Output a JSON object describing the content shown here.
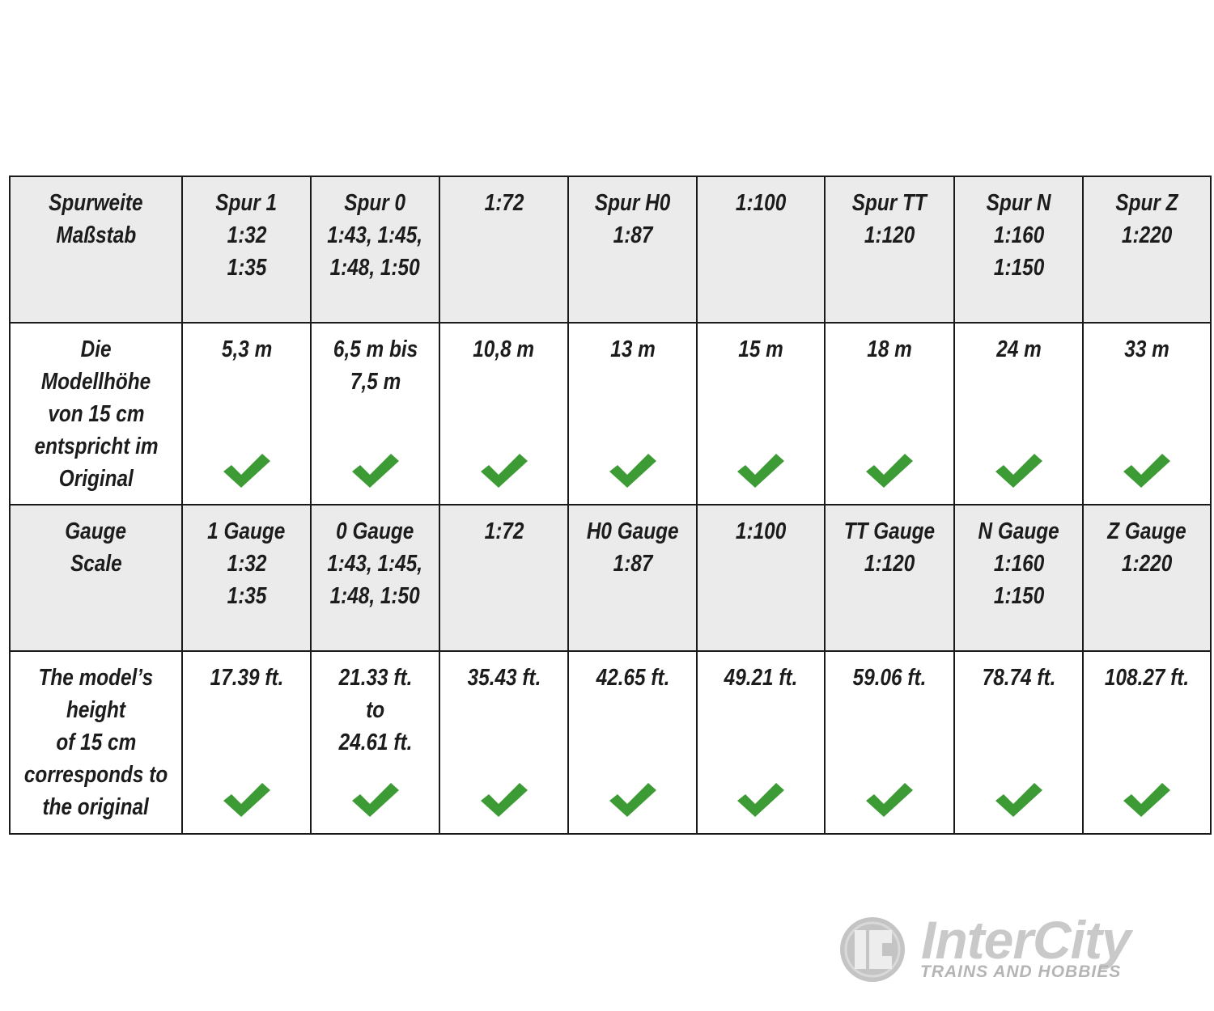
{
  "table": {
    "rows": [
      {
        "shade": true,
        "cells": [
          {
            "lines": [
              "Spurweite",
              "Maßstab"
            ]
          },
          {
            "lines": [
              "Spur 1",
              "1:32",
              "1:35"
            ]
          },
          {
            "lines": [
              "Spur 0",
              "1:43, 1:45,",
              "1:48, 1:50"
            ]
          },
          {
            "lines": [
              "1:72"
            ]
          },
          {
            "lines": [
              "Spur H0",
              "1:87"
            ]
          },
          {
            "lines": [
              "1:100"
            ]
          },
          {
            "lines": [
              "Spur TT",
              "1:120"
            ]
          },
          {
            "lines": [
              "Spur N",
              "1:160",
              "1:150"
            ]
          },
          {
            "lines": [
              "Spur Z",
              "1:220"
            ]
          }
        ]
      },
      {
        "shade": false,
        "cells": [
          {
            "lines": [
              "Die",
              "Modellhöhe",
              "von 15 cm",
              "entspricht im",
              "Original"
            ]
          },
          {
            "lines": [
              "5,3 m"
            ],
            "check": true
          },
          {
            "lines": [
              "6,5 m bis",
              "7,5 m"
            ],
            "check": true
          },
          {
            "lines": [
              "10,8 m"
            ],
            "check": true
          },
          {
            "lines": [
              "13 m"
            ],
            "check": true
          },
          {
            "lines": [
              "15 m"
            ],
            "check": true
          },
          {
            "lines": [
              "18 m"
            ],
            "check": true
          },
          {
            "lines": [
              "24 m"
            ],
            "check": true
          },
          {
            "lines": [
              "33 m"
            ],
            "check": true
          }
        ]
      },
      {
        "shade": true,
        "cells": [
          {
            "lines": [
              "Gauge",
              "Scale"
            ]
          },
          {
            "lines": [
              "1 Gauge",
              "1:32",
              "1:35"
            ]
          },
          {
            "lines": [
              "0 Gauge",
              "1:43, 1:45,",
              "1:48, 1:50"
            ]
          },
          {
            "lines": [
              "1:72"
            ]
          },
          {
            "lines": [
              "H0 Gauge",
              "1:87"
            ]
          },
          {
            "lines": [
              "1:100"
            ]
          },
          {
            "lines": [
              "TT Gauge",
              "1:120"
            ]
          },
          {
            "lines": [
              "N Gauge",
              "1:160",
              "1:150"
            ]
          },
          {
            "lines": [
              "Z Gauge",
              "1:220"
            ]
          }
        ]
      },
      {
        "shade": false,
        "cells": [
          {
            "lines": [
              "The model’s",
              "height",
              "of 15 cm",
              "corresponds to",
              "the original"
            ]
          },
          {
            "lines": [
              "17.39 ft."
            ],
            "check": true
          },
          {
            "lines": [
              "21.33 ft.",
              "to",
              "24.61 ft."
            ],
            "check": true
          },
          {
            "lines": [
              "35.43 ft."
            ],
            "check": true
          },
          {
            "lines": [
              "42.65 ft."
            ],
            "check": true
          },
          {
            "lines": [
              "49.21 ft."
            ],
            "check": true
          },
          {
            "lines": [
              "59.06 ft."
            ],
            "check": true
          },
          {
            "lines": [
              "78.74 ft."
            ],
            "check": true
          },
          {
            "lines": [
              "108.27 ft."
            ],
            "check": true
          }
        ]
      }
    ]
  },
  "colors": {
    "check": "#3d9b35",
    "header_bg": "#ebebeb",
    "border": "#1a1a1a"
  },
  "logo": {
    "name": "InterCity",
    "tagline": "TRAINS AND HOBBIES",
    "badge": "IC"
  }
}
